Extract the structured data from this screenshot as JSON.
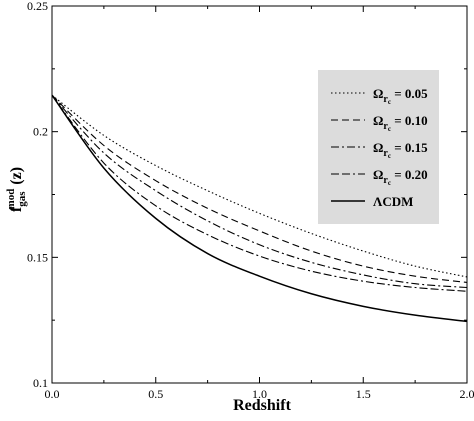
{
  "chart_data": {
    "type": "line",
    "xlabel": "Redshift",
    "ylabel": {
      "base": "f",
      "sub": "gas",
      "sup": "mod",
      "suffix": " (z)"
    },
    "xlim": [
      0.0,
      2.0
    ],
    "ylim": [
      0.1,
      0.25
    ],
    "x_ticks": [
      0.0,
      0.5,
      1.0,
      1.5,
      2.0
    ],
    "x_tick_labels": [
      "0.0",
      "0.5",
      "1.0",
      "1.5",
      "2.0"
    ],
    "y_ticks": [
      0.1,
      0.15,
      0.2,
      0.25
    ],
    "y_tick_labels": [
      "0.1",
      "0.15",
      "0.2",
      "0.25"
    ],
    "grid": false,
    "legend_position": "top-right",
    "legend_background": "#dcdcdc",
    "series": [
      {
        "name": "Ωr_c = 0.05",
        "label_main": "Ω",
        "label_sub": "r",
        "label_subsub": "c",
        "label_value": " = 0.05",
        "line_style": "dotted",
        "color": "#000000",
        "x": [
          0.0,
          0.25,
          0.5,
          0.75,
          1.0,
          1.25,
          1.5,
          1.75,
          2.0
        ],
        "y": [
          0.2145,
          0.1985,
          0.1865,
          0.1765,
          0.1675,
          0.1595,
          0.1525,
          0.1465,
          0.1422
        ]
      },
      {
        "name": "Ωr_c = 0.10",
        "label_main": "Ω",
        "label_sub": "r",
        "label_subsub": "c",
        "label_value": " = 0.10",
        "line_style": "dashed",
        "color": "#000000",
        "x": [
          0.0,
          0.25,
          0.5,
          0.75,
          1.0,
          1.25,
          1.5,
          1.75,
          2.0
        ],
        "y": [
          0.2145,
          0.1945,
          0.1805,
          0.1695,
          0.1605,
          0.1525,
          0.1465,
          0.1425,
          0.14
        ]
      },
      {
        "name": "Ωr_c = 0.15",
        "label_main": "Ω",
        "label_sub": "r",
        "label_subsub": "c",
        "label_value": " = 0.15",
        "line_style": "dash-dot",
        "color": "#000000",
        "x": [
          0.0,
          0.25,
          0.5,
          0.75,
          1.0,
          1.25,
          1.5,
          1.75,
          2.0
        ],
        "y": [
          0.2145,
          0.1915,
          0.1765,
          0.1645,
          0.155,
          0.148,
          0.143,
          0.1395,
          0.138
        ]
      },
      {
        "name": "Ωr_c = 0.20",
        "label_main": "Ω",
        "label_sub": "r",
        "label_subsub": "c",
        "label_value": " = 0.20",
        "line_style": "dash-dash-dot",
        "color": "#000000",
        "x": [
          0.0,
          0.25,
          0.5,
          0.75,
          1.0,
          1.25,
          1.5,
          1.75,
          2.0
        ],
        "y": [
          0.2145,
          0.1875,
          0.1705,
          0.159,
          0.1505,
          0.1445,
          0.1405,
          0.138,
          0.1365
        ]
      },
      {
        "name": "ΛCDM",
        "label_main": "ΛCDM",
        "label_sub": "",
        "label_subsub": "",
        "label_value": "",
        "line_style": "solid",
        "color": "#000000",
        "x": [
          0.0,
          0.25,
          0.5,
          0.75,
          1.0,
          1.25,
          1.5,
          1.75,
          2.0
        ],
        "y": [
          0.2145,
          0.1855,
          0.1655,
          0.1515,
          0.1425,
          0.1355,
          0.1305,
          0.127,
          0.1245
        ]
      }
    ]
  }
}
